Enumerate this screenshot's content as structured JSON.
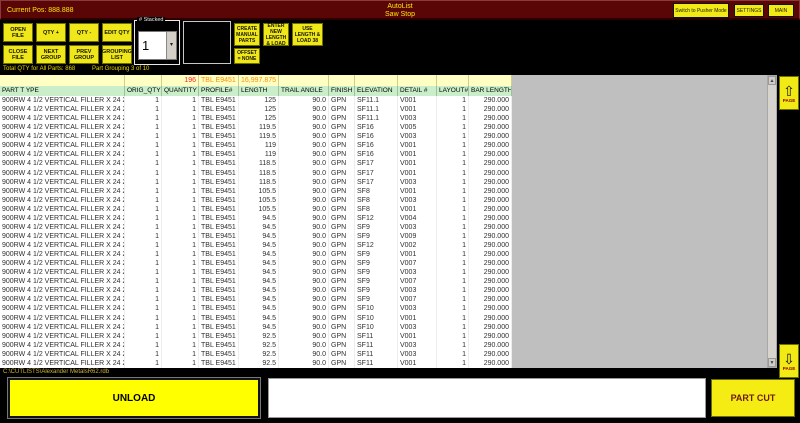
{
  "titlebar": {
    "current_pos": "Current Pos: 888.888",
    "title_line1": "AutoList",
    "title_line2": "Saw Stop",
    "switch_mode_label": "Switch to Pusher Mode",
    "settings_label": "SETTINGS",
    "main_label": "MAIN"
  },
  "toolbar": {
    "open_file": "OPEN FILE",
    "qty_plus": "QTY +",
    "qty_minus": "QTY -",
    "edit_qty": "EDIT QTY",
    "close_file": "CLOSE FILE",
    "next_group": "NEXT GROUP",
    "prev_group": "PREV GROUP",
    "grouping_list": "GROUPING LIST",
    "stacked_group_label": "# Stacked",
    "stacked_value": "1",
    "stacked_dropdown_icon": "chevron-down",
    "create_manual_parts": "CREATE MANUAL PARTS",
    "enter_new_length_load": "ENTER NEW LENGTH & LOAD",
    "use_length_load": "USE LENGTH & LOAD 38",
    "offset_none": "OFFSET = NONE"
  },
  "status": {
    "total_qty_text": "Total QTY for All Parts: 868",
    "part_grouping_text": "Part Grouping 3 of 10"
  },
  "table": {
    "summary": {
      "quantity": "196",
      "profile": "TBL E9451",
      "length": "16,997.875"
    },
    "columns": [
      "PART T YPE",
      "ORIG_QTY",
      "QUANTITY",
      "PROFILE#",
      "LENGTH",
      "TRAIL ANGLE",
      "FINISH",
      "ELEVATION",
      "DETAIL #",
      "LAYOUT#",
      "BAR LENGTH"
    ],
    "rows": [
      [
        "900RW 4 1/2 VERTICAL FILLER X 24 2",
        "1",
        "1",
        "TBL E9451",
        "125",
        "90.0",
        "GPN",
        "SF11.1",
        "V001",
        "1",
        "290.000"
      ],
      [
        "900RW 4 1/2 VERTICAL FILLER X 24 2",
        "1",
        "1",
        "TBL E9451",
        "125",
        "90.0",
        "GPN",
        "SF11.1",
        "V001",
        "1",
        "290.000"
      ],
      [
        "900RW 4 1/2 VERTICAL FILLER X 24 2",
        "1",
        "1",
        "TBL E9451",
        "125",
        "90.0",
        "GPN",
        "SF11.1",
        "V003",
        "1",
        "290.000"
      ],
      [
        "900RW 4 1/2 VERTICAL FILLER X 24 2",
        "1",
        "1",
        "TBL E9451",
        "119.5",
        "90.0",
        "GPN",
        "SF16",
        "V005",
        "1",
        "290.000"
      ],
      [
        "900RW 4 1/2 VERTICAL FILLER X 24 2",
        "1",
        "1",
        "TBL E9451",
        "119.5",
        "90.0",
        "GPN",
        "SF16",
        "V003",
        "1",
        "290.000"
      ],
      [
        "900RW 4 1/2 VERTICAL FILLER X 24 2",
        "1",
        "1",
        "TBL E9451",
        "119",
        "90.0",
        "GPN",
        "SF16",
        "V001",
        "1",
        "290.000"
      ],
      [
        "900RW 4 1/2 VERTICAL FILLER X 24 2",
        "1",
        "1",
        "TBL E9451",
        "119",
        "90.0",
        "GPN",
        "SF16",
        "V001",
        "1",
        "290.000"
      ],
      [
        "900RW 4 1/2 VERTICAL FILLER X 24 2",
        "1",
        "1",
        "TBL E9451",
        "118.5",
        "90.0",
        "GPN",
        "SF17",
        "V001",
        "1",
        "290.000"
      ],
      [
        "900RW 4 1/2 VERTICAL FILLER X 24 2",
        "1",
        "1",
        "TBL E9451",
        "118.5",
        "90.0",
        "GPN",
        "SF17",
        "V001",
        "1",
        "290.000"
      ],
      [
        "900RW 4 1/2 VERTICAL FILLER X 24 2",
        "1",
        "1",
        "TBL E9451",
        "118.5",
        "90.0",
        "GPN",
        "SF17",
        "V003",
        "1",
        "290.000"
      ],
      [
        "900RW 4 1/2 VERTICAL FILLER X 24 2",
        "1",
        "1",
        "TBL E9451",
        "105.5",
        "90.0",
        "GPN",
        "SF8",
        "V001",
        "1",
        "290.000"
      ],
      [
        "900RW 4 1/2 VERTICAL FILLER X 24 2",
        "1",
        "1",
        "TBL E9451",
        "105.5",
        "90.0",
        "GPN",
        "SF8",
        "V003",
        "1",
        "290.000"
      ],
      [
        "900RW 4 1/2 VERTICAL FILLER X 24 2",
        "1",
        "1",
        "TBL E9451",
        "105.5",
        "90.0",
        "GPN",
        "SF8",
        "V001",
        "1",
        "290.000"
      ],
      [
        "900RW 4 1/2 VERTICAL FILLER X 24 2",
        "1",
        "1",
        "TBL E9451",
        "94.5",
        "90.0",
        "GPN",
        "SF12",
        "V004",
        "1",
        "290.000"
      ],
      [
        "900RW 4 1/2 VERTICAL FILLER X 24 2",
        "1",
        "1",
        "TBL E9451",
        "94.5",
        "90.0",
        "GPN",
        "SF9",
        "V003",
        "1",
        "290.000"
      ],
      [
        "900RW 4 1/2 VERTICAL FILLER X 24 2",
        "1",
        "1",
        "TBL E9451",
        "94.5",
        "90.0",
        "GPN",
        "SF9",
        "V009",
        "1",
        "290.000"
      ],
      [
        "900RW 4 1/2 VERTICAL FILLER X 24 2",
        "1",
        "1",
        "TBL E9451",
        "94.5",
        "90.0",
        "GPN",
        "SF12",
        "V002",
        "1",
        "290.000"
      ],
      [
        "900RW 4 1/2 VERTICAL FILLER X 24 2",
        "1",
        "1",
        "TBL E9451",
        "94.5",
        "90.0",
        "GPN",
        "SF9",
        "V001",
        "1",
        "290.000"
      ],
      [
        "900RW 4 1/2 VERTICAL FILLER X 24 2",
        "1",
        "1",
        "TBL E9451",
        "94.5",
        "90.0",
        "GPN",
        "SF9",
        "V007",
        "1",
        "290.000"
      ],
      [
        "900RW 4 1/2 VERTICAL FILLER X 24 2",
        "1",
        "1",
        "TBL E9451",
        "94.5",
        "90.0",
        "GPN",
        "SF9",
        "V003",
        "1",
        "290.000"
      ],
      [
        "900RW 4 1/2 VERTICAL FILLER X 24 2",
        "1",
        "1",
        "TBL E9451",
        "94.5",
        "90.0",
        "GPN",
        "SF9",
        "V007",
        "1",
        "290.000"
      ],
      [
        "900RW 4 1/2 VERTICAL FILLER X 24 2",
        "1",
        "1",
        "TBL E9451",
        "94.5",
        "90.0",
        "GPN",
        "SF9",
        "V003",
        "1",
        "290.000"
      ],
      [
        "900RW 4 1/2 VERTICAL FILLER X 24 2",
        "1",
        "1",
        "TBL E9451",
        "94.5",
        "90.0",
        "GPN",
        "SF9",
        "V007",
        "1",
        "290.000"
      ],
      [
        "900RW 4 1/2 VERTICAL FILLER X 24 2",
        "1",
        "1",
        "TBL E9451",
        "94.5",
        "90.0",
        "GPN",
        "SF10",
        "V003",
        "1",
        "290.000"
      ],
      [
        "900RW 4 1/2 VERTICAL FILLER X 24 2",
        "1",
        "1",
        "TBL E9451",
        "94.5",
        "90.0",
        "GPN",
        "SF10",
        "V001",
        "1",
        "290.000"
      ],
      [
        "900RW 4 1/2 VERTICAL FILLER X 24 2",
        "1",
        "1",
        "TBL E9451",
        "94.5",
        "90.0",
        "GPN",
        "SF10",
        "V003",
        "1",
        "290.000"
      ],
      [
        "900RW 4 1/2 VERTICAL FILLER X 24 2",
        "1",
        "1",
        "TBL E9451",
        "92.5",
        "90.0",
        "GPN",
        "SF11",
        "V001",
        "1",
        "290.000"
      ],
      [
        "900RW 4 1/2 VERTICAL FILLER X 24 2",
        "1",
        "1",
        "TBL E9451",
        "92.5",
        "90.0",
        "GPN",
        "SF11",
        "V003",
        "1",
        "290.000"
      ],
      [
        "900RW 4 1/2 VERTICAL FILLER X 24 2",
        "1",
        "1",
        "TBL E9451",
        "92.5",
        "90.0",
        "GPN",
        "SF11",
        "V003",
        "1",
        "290.000"
      ],
      [
        "900RW 4 1/2 VERTICAL FILLER X 24 2",
        "1",
        "1",
        "TBL E9451",
        "92.5",
        "90.0",
        "GPN",
        "SF11",
        "V001",
        "1",
        "290.000"
      ]
    ]
  },
  "pager": {
    "page_up_label": "PAGE",
    "page_down_label": "PAGE",
    "up_icon": "arrow-up",
    "down_icon": "arrow-down"
  },
  "footer": {
    "file_path": "C:\\CUTLISTS\\Alexander MetalsR62.rdb",
    "unload_label": "UNLOAD",
    "part_cut_label": "PART CUT"
  },
  "colors": {
    "titlebar_maroon": "#5a0606",
    "button_yellow": "#efe71a",
    "bright_yellow": "#ffff00",
    "summary_row_bg": "#ffffc4",
    "header_row_bg": "#c9eec9",
    "summary_qty_red": "#ff2222",
    "summary_orange": "#ff8c00",
    "page_label_red": "#8b0000"
  }
}
